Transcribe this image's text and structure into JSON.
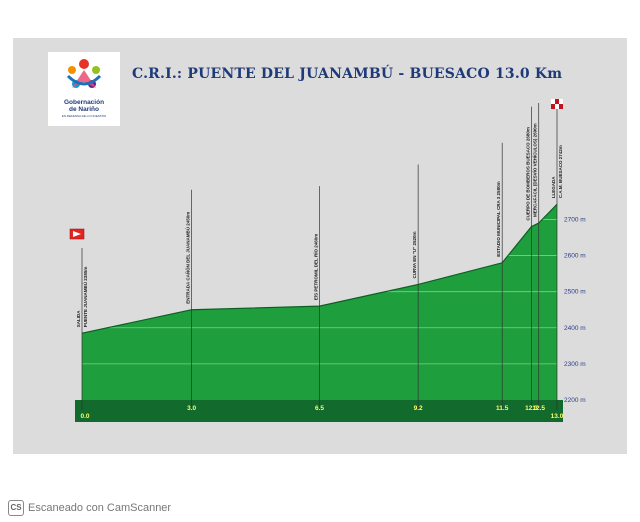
{
  "title": "C.R.I.:  PUENTE DEL JUANAMBÚ - BUESACO  13.0 Km",
  "logo": {
    "line1": "Gobernación",
    "line2": "de Nariño",
    "tagline": "EN DEFENSA DE LO NUESTRO"
  },
  "footer": {
    "icon": "CS",
    "text": "Escaneado con CamScanner"
  },
  "colors": {
    "fill": "#1e9e3c",
    "base_bar": "#126a2c",
    "outline": "#0e5e23",
    "title": "#1f3a78",
    "km_label": "#ffff66",
    "alt_label": "#2a3c8a"
  },
  "chart_data": {
    "type": "area",
    "title": "C.R.I.:  PUENTE DEL JUANAMBÚ - BUESACO  13.0 Km",
    "xlabel": "",
    "ylabel": "",
    "xlim": [
      0,
      13.0
    ],
    "ylim": [
      2200,
      2740
    ],
    "grid": true,
    "x": [
      0.0,
      3.0,
      6.5,
      9.2,
      11.5,
      12.3,
      12.5,
      13.0
    ],
    "y": [
      2385,
      2450,
      2460,
      2520,
      2580,
      2680,
      2690,
      2742
    ],
    "x_tick_labels": [
      "0.0",
      "3.0",
      "6.5",
      "9.2",
      "11.5",
      "12.3",
      "12.5",
      "13.0"
    ],
    "y_ticks": [
      2200,
      2300,
      2400,
      2500,
      2600,
      2700
    ],
    "y_tick_labels": [
      "2200 m",
      "2300 m",
      "2400 m",
      "2500 m",
      "2600 m",
      "2700 m"
    ],
    "annotations": [
      {
        "x": 0.0,
        "label": "SALIDA",
        "label2": "PUENTE JUANAMBÚ  2385m"
      },
      {
        "x": 3.0,
        "label": "ENTRADA CAÑÓN DEL JUANAMBÚ  2450m"
      },
      {
        "x": 6.5,
        "label": "E/S PETROMIL DEL RÍO  2460m"
      },
      {
        "x": 9.2,
        "label": "CURVA EN \"U\"  2520m"
      },
      {
        "x": 11.5,
        "label": "ESTADIO MUNICIPAL CRA 3   2580m"
      },
      {
        "x": 12.3,
        "label": "CUERPO DE BOMBEROS BUESACO  2680m"
      },
      {
        "x": 12.5,
        "label": "MERCAFÁCIL (DESVÍO VEHÍCULOS)  2690m"
      },
      {
        "x": 13.0,
        "label": "LLEGADA",
        "label2": "C.A.M. BUESACO  2742m"
      }
    ]
  }
}
